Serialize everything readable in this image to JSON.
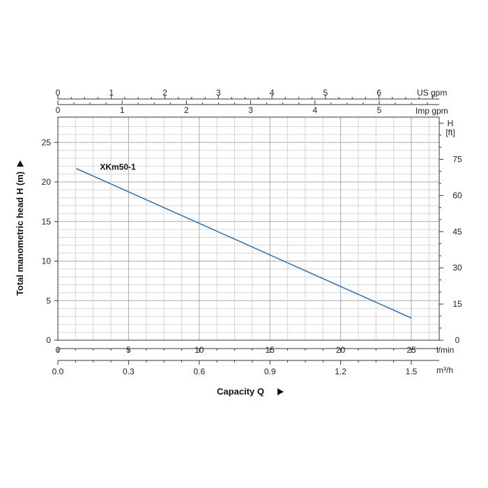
{
  "chart_data": {
    "type": "line",
    "title": "",
    "xlabel": "Capacity Q",
    "ylabel": "Total manometric head H (m)",
    "grid": true,
    "xlim": [
      0,
      25
    ],
    "ylim": [
      0,
      28
    ],
    "x_units": {
      "bottom": "l/min",
      "bottom2": "m³/h",
      "top_inner": "Imp gpm",
      "top_outer": "US gpm"
    },
    "right_axis_label": {
      "line1": "H",
      "line2": "[ft]"
    },
    "ticks": {
      "left": [
        "0",
        "5",
        "10",
        "15",
        "20",
        "25"
      ],
      "bottom_lmin": [
        "0",
        "5",
        "10",
        "15",
        "20",
        "25"
      ],
      "bottom_m3h": [
        "0.0",
        "0.3",
        "0.6",
        "0.9",
        "1.2",
        "1.5"
      ],
      "top_imp": [
        "0",
        "1",
        "2",
        "3",
        "4",
        "5"
      ],
      "top_us": [
        "0",
        "1",
        "2",
        "3",
        "4",
        "5",
        "6"
      ],
      "right_ft": [
        "0",
        "15",
        "30",
        "45",
        "60",
        "75"
      ]
    },
    "series": [
      {
        "name": "XKm50-1",
        "x": [
          1.3,
          25
        ],
        "y": [
          21.7,
          2.8
        ]
      }
    ]
  }
}
